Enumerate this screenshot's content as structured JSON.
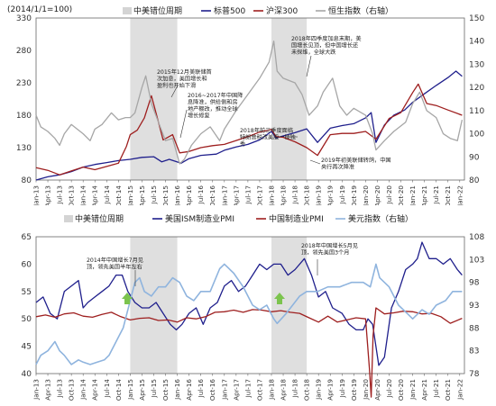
{
  "chart_data": [
    {
      "type": "line",
      "note": "(2014/1/1=100)",
      "legend": [
        "中美错位周期",
        "标普500",
        "沪深300",
        "恒生指数（右轴）"
      ],
      "colors": {
        "shade": "#d4d4d4",
        "sp500": "#1f1f8c",
        "hs300": "#9e1f1f",
        "hsi": "#a6a6a6"
      },
      "x_range": [
        2013.0,
        2022.1
      ],
      "x_ticks": [
        "Jan-13",
        "Apr-13",
        "Jul-13",
        "Oct-13",
        "Jan-14",
        "Apr-14",
        "Jul-14",
        "Oct-14",
        "Jan-15",
        "Apr-15",
        "Jul-15",
        "Oct-15",
        "Jan-16",
        "Apr-16",
        "Jul-16",
        "Oct-16",
        "Jan-17",
        "Apr-17",
        "Jul-17",
        "Oct-17",
        "Jan-18",
        "Apr-18",
        "Jul-18",
        "Oct-18",
        "Jan-19",
        "Apr-19",
        "Jul-19",
        "Oct-19",
        "Jan-20",
        "Apr-20",
        "Jul-20",
        "Oct-20",
        "Jan-21",
        "Apr-21",
        "Jul-21",
        "Oct-21",
        "Jan-22"
      ],
      "y_left": {
        "min": 80,
        "max": 330,
        "ticks": [
          80,
          130,
          180,
          230,
          280,
          330
        ]
      },
      "y_right": {
        "min": 80,
        "max": 150,
        "ticks": [
          80,
          90,
          100,
          110,
          120,
          130,
          140,
          150
        ]
      },
      "shade_periods": [
        [
          2015.0,
          2016.0
        ],
        [
          2018.0,
          2018.75
        ]
      ],
      "series": [
        {
          "name": "标普500",
          "axis": "left",
          "x": [
            2013.0,
            2013.25,
            2013.5,
            2013.75,
            2014.0,
            2014.25,
            2014.5,
            2014.75,
            2015.0,
            2015.25,
            2015.5,
            2015.67,
            2015.83,
            2016.08,
            2016.25,
            2016.5,
            2016.83,
            2017.0,
            2017.25,
            2017.5,
            2017.75,
            2018.0,
            2018.1,
            2018.25,
            2018.5,
            2018.75,
            2018.98,
            2019.25,
            2019.5,
            2019.75,
            2020.0,
            2020.12,
            2020.22,
            2020.4,
            2020.6,
            2020.83,
            2021.0,
            2021.25,
            2021.5,
            2021.75,
            2021.92,
            2022.05
          ],
          "y": [
            80,
            85,
            88,
            93,
            100,
            104,
            107,
            110,
            112,
            115,
            116,
            108,
            112,
            106,
            113,
            118,
            120,
            126,
            131,
            135,
            142,
            155,
            145,
            148,
            153,
            159,
            138,
            160,
            164,
            167,
            176,
            184,
            138,
            165,
            180,
            188,
            200,
            213,
            226,
            238,
            248,
            240
          ]
        },
        {
          "name": "沪深300",
          "axis": "left",
          "x": [
            2013.0,
            2013.25,
            2013.5,
            2013.75,
            2014.0,
            2014.25,
            2014.5,
            2014.75,
            2014.92,
            2015.0,
            2015.15,
            2015.3,
            2015.45,
            2015.55,
            2015.7,
            2015.9,
            2016.05,
            2016.25,
            2016.5,
            2016.75,
            2017.0,
            2017.25,
            2017.5,
            2017.75,
            2018.0,
            2018.1,
            2018.25,
            2018.5,
            2018.75,
            2018.98,
            2019.25,
            2019.5,
            2019.75,
            2020.0,
            2020.22,
            2020.5,
            2020.75,
            2021.0,
            2021.12,
            2021.3,
            2021.5,
            2021.75,
            2022.05
          ],
          "y": [
            99,
            95,
            88,
            94,
            100,
            96,
            101,
            106,
            132,
            150,
            157,
            176,
            210,
            183,
            142,
            150,
            122,
            124,
            130,
            133,
            135,
            141,
            147,
            154,
            158,
            147,
            146,
            139,
            130,
            118,
            150,
            152,
            152,
            155,
            143,
            175,
            184,
            215,
            228,
            198,
            195,
            188,
            180
          ]
        },
        {
          "name": "恒生指数（右轴）",
          "axis": "right",
          "x": [
            2013.0,
            2013.1,
            2013.25,
            2013.4,
            2013.5,
            2013.6,
            2013.75,
            2014.0,
            2014.15,
            2014.25,
            2014.4,
            2014.6,
            2014.75,
            2014.9,
            2015.0,
            2015.1,
            2015.25,
            2015.33,
            2015.45,
            2015.6,
            2015.75,
            2015.9,
            2016.05,
            2016.15,
            2016.3,
            2016.5,
            2016.7,
            2016.9,
            2017.0,
            2017.25,
            2017.5,
            2017.75,
            2017.95,
            2018.05,
            2018.12,
            2018.25,
            2018.5,
            2018.65,
            2018.8,
            2018.98,
            2019.1,
            2019.3,
            2019.45,
            2019.6,
            2019.75,
            2020.0,
            2020.15,
            2020.22,
            2020.4,
            2020.6,
            2020.85,
            2021.0,
            2021.15,
            2021.3,
            2021.5,
            2021.65,
            2021.8,
            2021.95,
            2022.05
          ],
          "y": [
            108,
            103,
            101,
            98,
            95,
            100,
            104,
            100,
            97,
            102,
            104,
            109,
            106,
            107,
            107,
            109,
            120,
            125,
            113,
            105,
            97,
            98,
            87,
            89,
            95,
            100,
            103,
            97,
            102,
            110,
            117,
            124,
            131,
            140,
            127,
            124,
            122,
            117,
            108,
            112,
            118,
            124,
            112,
            108,
            111,
            108,
            100,
            93,
            97,
            101,
            105,
            113,
            118,
            110,
            107,
            100,
            98,
            97,
            106
          ]
        }
      ],
      "annotations": [
        {
          "lines": [
            "2015年12月美联储首",
            "次加息，美国增长和",
            "盈利也开始下滑"
          ]
        },
        {
          "lines": [
            "2016~2017年中国降",
            "息降准，供给侧和房",
            "地产棚改，推动全球",
            "增长修复"
          ]
        },
        {
          "lines": [
            "2018年四季度加息末期，美",
            "国增长见顶，但中国增长还",
            "未探维，全球大跌"
          ]
        },
        {
          "lines": [
            "2018年前三季度面临",
            "特朗普税改美股一枝独",
            "秀"
          ]
        },
        {
          "lines": [
            "2019年初美联储转鸽，中国",
            "央行再次降准"
          ]
        }
      ]
    },
    {
      "type": "line",
      "legend": [
        "中美错位周期",
        "美国ISM制造业PMI",
        "中国制造业PMI",
        "美元指数（右轴）"
      ],
      "colors": {
        "shade": "#d4d4d4",
        "ism": "#1f1f8c",
        "cpmi": "#9e1f1f",
        "dxy": "#8fb4de",
        "arrow": "#7cc44e"
      },
      "x_range": [
        2013.0,
        2022.1
      ],
      "x_ticks": [
        "Jan-13",
        "Apr-13",
        "Jul-13",
        "Oct-13",
        "Jan-14",
        "Apr-14",
        "Jul-14",
        "Oct-14",
        "Jan-15",
        "Apr-15",
        "Jul-15",
        "Oct-15",
        "Jan-16",
        "Apr-16",
        "Jul-16",
        "Oct-16",
        "Jan-17",
        "Apr-17",
        "Jul-17",
        "Oct-17",
        "Jan-18",
        "Apr-18",
        "Jul-18",
        "Oct-18",
        "Jan-19",
        "Apr-19",
        "Jul-19",
        "Oct-19",
        "Jan-20",
        "Apr-20",
        "Jul-20",
        "Oct-20",
        "Jan-21",
        "Apr-21",
        "Jul-21",
        "Oct-21",
        "Jan-22"
      ],
      "y_left": {
        "min": 40,
        "max": 65,
        "ticks": [
          40,
          45,
          50,
          55,
          60,
          65
        ]
      },
      "y_right": {
        "min": 78,
        "max": 108,
        "ticks": [
          78,
          83,
          88,
          93,
          98,
          103,
          108
        ]
      },
      "shade_periods": [
        [
          2015.0,
          2016.0
        ],
        [
          2018.0,
          2018.75
        ]
      ],
      "series": [
        {
          "name": "美国ISM制造业PMI",
          "axis": "left",
          "x": [
            2013.0,
            2013.15,
            2013.3,
            2013.45,
            2013.6,
            2013.75,
            2013.9,
            2014.0,
            2014.1,
            2014.25,
            2014.4,
            2014.55,
            2014.7,
            2014.83,
            2014.95,
            2015.1,
            2015.25,
            2015.4,
            2015.55,
            2015.7,
            2015.85,
            2015.98,
            2016.1,
            2016.25,
            2016.4,
            2016.55,
            2016.7,
            2016.85,
            2017.0,
            2017.15,
            2017.3,
            2017.45,
            2017.6,
            2017.75,
            2017.9,
            2018.05,
            2018.2,
            2018.35,
            2018.5,
            2018.7,
            2018.85,
            2019.0,
            2019.15,
            2019.3,
            2019.5,
            2019.65,
            2019.8,
            2019.95,
            2020.05,
            2020.15,
            2020.28,
            2020.4,
            2020.55,
            2020.7,
            2020.85,
            2021.0,
            2021.1,
            2021.2,
            2021.35,
            2021.5,
            2021.65,
            2021.8,
            2021.95,
            2022.05
          ],
          "y": [
            53,
            54,
            51,
            50,
            55,
            56,
            57,
            52,
            53,
            54,
            55,
            56,
            58,
            58,
            55,
            53,
            52,
            52,
            53,
            51,
            49,
            48,
            49,
            51,
            52,
            49,
            52,
            53,
            56,
            57,
            55,
            56,
            58,
            60,
            59,
            60,
            60,
            58,
            59,
            61,
            58,
            54,
            55,
            52,
            51,
            49,
            48,
            48,
            50,
            49,
            41.5,
            43,
            52,
            55,
            59,
            60,
            61,
            64,
            61,
            61,
            60,
            61,
            59,
            58
          ]
        },
        {
          "name": "中国制造业PMI",
          "axis": "left",
          "x": [
            2013.0,
            2013.2,
            2013.4,
            2013.6,
            2013.8,
            2014.0,
            2014.2,
            2014.4,
            2014.6,
            2014.8,
            2015.0,
            2015.2,
            2015.4,
            2015.6,
            2015.8,
            2016.0,
            2016.2,
            2016.4,
            2016.6,
            2016.8,
            2017.0,
            2017.2,
            2017.4,
            2017.6,
            2017.8,
            2018.0,
            2018.2,
            2018.4,
            2018.6,
            2018.8,
            2019.0,
            2019.2,
            2019.4,
            2019.6,
            2019.8,
            2020.0,
            2020.08,
            2020.12,
            2020.16,
            2020.22,
            2020.4,
            2020.6,
            2020.8,
            2021.0,
            2021.2,
            2021.4,
            2021.6,
            2021.8,
            2022.05
          ],
          "y": [
            50.4,
            50.7,
            50.3,
            50.9,
            51.1,
            50.5,
            50.3,
            50.8,
            51.2,
            50.4,
            49.8,
            50.1,
            50.2,
            49.7,
            49.8,
            49.4,
            50.2,
            50.0,
            50.4,
            51.2,
            51.3,
            51.6,
            51.2,
            51.7,
            51.6,
            51.3,
            51.5,
            51.2,
            51.0,
            50.2,
            49.4,
            50.5,
            49.4,
            49.8,
            50.2,
            50.0,
            41,
            35.7,
            47,
            52,
            50.9,
            51.1,
            51.4,
            51.3,
            50.9,
            51.0,
            50.4,
            49.2,
            50.1
          ]
        },
        {
          "name": "美元指数（右轴）",
          "axis": "right",
          "x": [
            2013.0,
            2013.1,
            2013.25,
            2013.4,
            2013.5,
            2013.6,
            2013.75,
            2013.9,
            2014.0,
            2014.15,
            2014.3,
            2014.45,
            2014.55,
            2014.65,
            2014.75,
            2014.85,
            2015.0,
            2015.1,
            2015.2,
            2015.3,
            2015.45,
            2015.6,
            2015.75,
            2015.9,
            2016.05,
            2016.2,
            2016.35,
            2016.5,
            2016.7,
            2016.9,
            2017.0,
            2017.2,
            2017.4,
            2017.6,
            2017.75,
            2017.9,
            2018.05,
            2018.12,
            2018.3,
            2018.45,
            2018.6,
            2018.75,
            2018.98,
            2019.2,
            2019.45,
            2019.7,
            2019.95,
            2020.1,
            2020.22,
            2020.3,
            2020.5,
            2020.7,
            2020.9,
            2021.0,
            2021.2,
            2021.35,
            2021.5,
            2021.7,
            2021.85,
            2022.05
          ],
          "y": [
            80,
            82,
            83,
            85,
            83,
            82,
            80,
            81,
            80.5,
            80,
            80.5,
            81,
            82,
            84,
            86,
            88,
            94,
            98,
            99,
            96,
            95,
            97,
            97,
            99,
            98,
            95,
            94,
            96,
            96,
            101,
            102,
            100,
            97,
            93,
            92,
            93,
            90,
            89,
            91,
            93,
            95,
            96,
            96,
            97,
            97,
            98,
            98,
            97,
            102,
            99,
            97,
            93,
            91,
            90,
            92,
            91,
            93,
            94,
            96,
            96
          ]
        }
      ],
      "annotations": [
        {
          "lines": [
            "2014年中国增长7月见",
            "顶，领先美国半年左右"
          ]
        },
        {
          "lines": [
            "2018年中国增长5月见",
            "顶，领先美国3个月"
          ]
        }
      ]
    }
  ]
}
